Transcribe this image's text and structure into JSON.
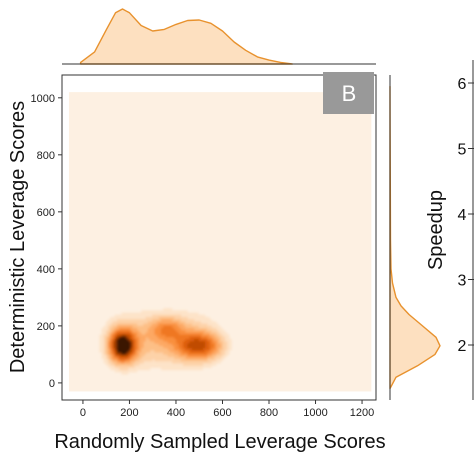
{
  "chart_data": {
    "type": "heatmap",
    "subtype": "joint kde density plot with marginal kde curves",
    "panel_label": "B",
    "xlabel": "Randomly Sampled Leverage Scores",
    "ylabel": "Deterministic Leverage Scores",
    "xlim": [
      -90,
      1260
    ],
    "ylim": [
      -60,
      1080
    ],
    "x_ticks": [
      0,
      200,
      400,
      600,
      800,
      1000,
      1200
    ],
    "y_ticks": [
      0,
      200,
      400,
      600,
      800,
      1000
    ],
    "grid": false,
    "colormap": "Oranges",
    "background_density_extent": {
      "x": [
        -60,
        1240
      ],
      "y": [
        -30,
        1020
      ]
    },
    "density_modes": [
      {
        "x": 170,
        "y": 130,
        "weight": 1.0
      },
      {
        "x": 500,
        "y": 130,
        "weight": 0.62
      }
    ],
    "marginal_x": {
      "x": [
        -10,
        50,
        100,
        140,
        170,
        200,
        250,
        300,
        350,
        400,
        450,
        500,
        550,
        600,
        650,
        700,
        750,
        800,
        850,
        900
      ],
      "density": [
        0.03,
        0.22,
        0.62,
        0.93,
        1.0,
        0.93,
        0.7,
        0.6,
        0.63,
        0.72,
        0.79,
        0.8,
        0.74,
        0.6,
        0.4,
        0.25,
        0.13,
        0.07,
        0.03,
        0.0
      ]
    },
    "marginal_y": {
      "y": [
        -20,
        20,
        60,
        100,
        130,
        160,
        200,
        240,
        270,
        300,
        350,
        400,
        500,
        700,
        900,
        1040
      ],
      "density": [
        0.0,
        0.12,
        0.55,
        0.9,
        1.0,
        0.92,
        0.65,
        0.38,
        0.22,
        0.12,
        0.05,
        0.02,
        0.01,
        0.005,
        0.003,
        0.0
      ]
    },
    "neighbor_axis": {
      "ylabel": "Speedup",
      "y_ticks": [
        2,
        3,
        4,
        5,
        6
      ]
    },
    "colors": {
      "fill_lightest": "#fdf0e2",
      "marginal_fill": "#fde0c0",
      "marginal_line": "#e8922e",
      "panel_label_bg": "#999999"
    }
  }
}
